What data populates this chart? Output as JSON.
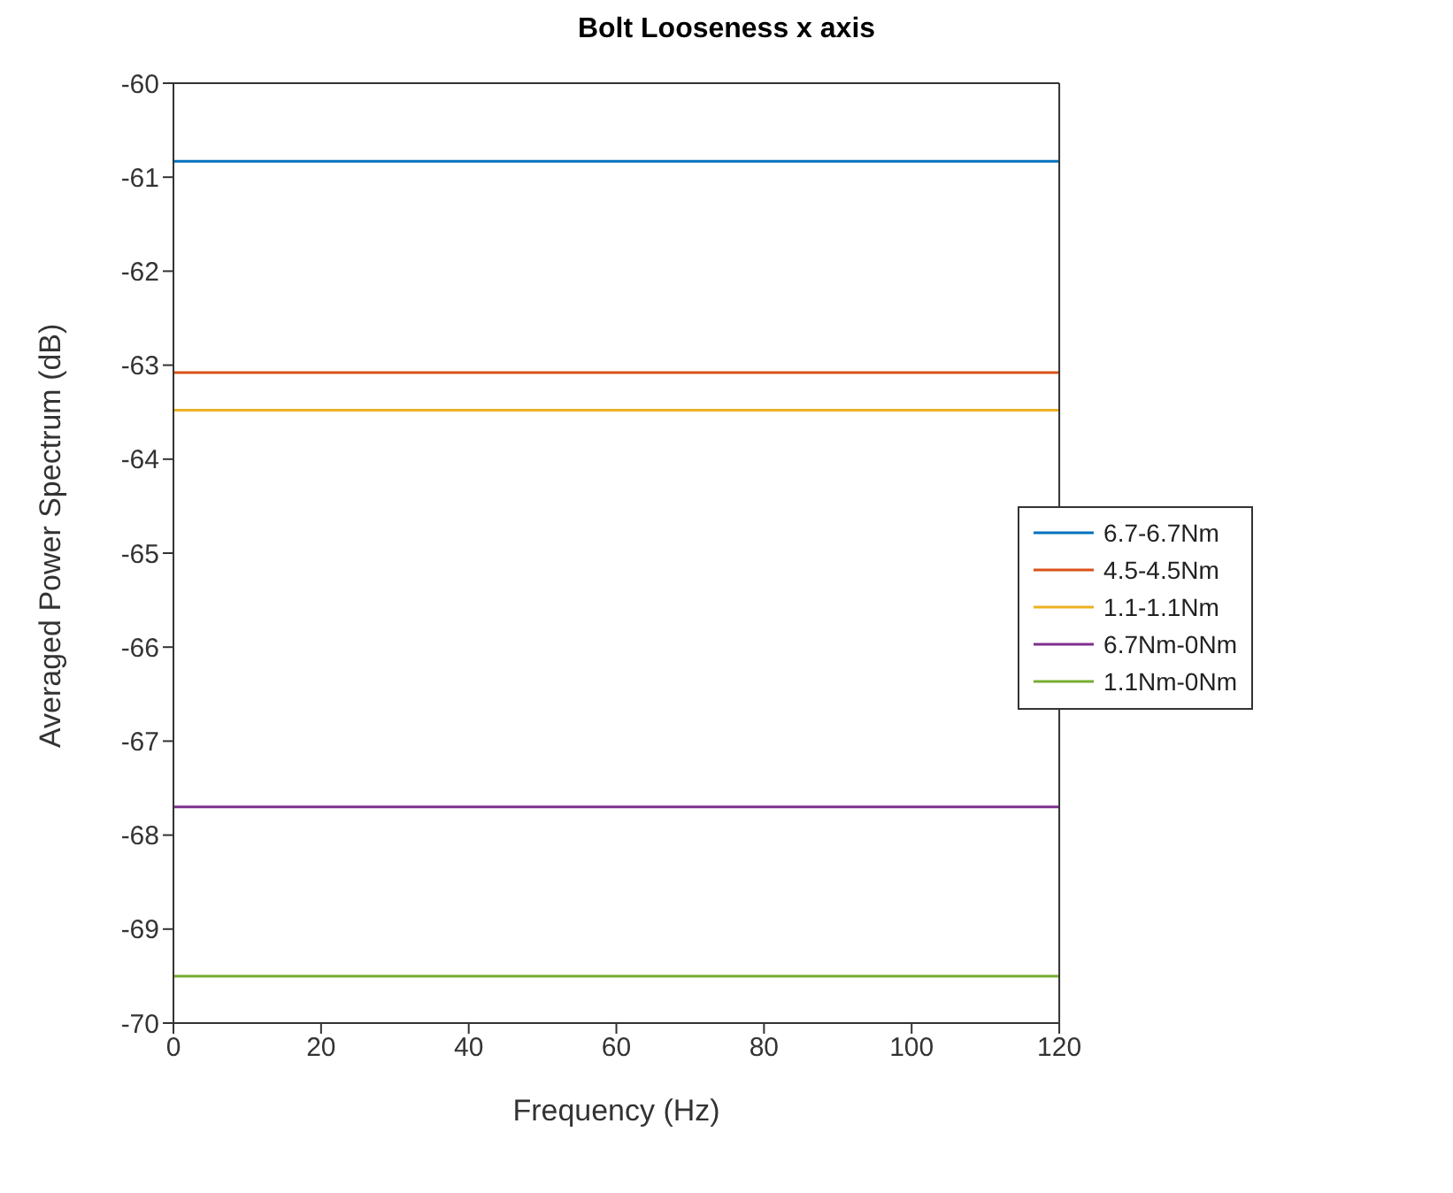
{
  "chart_data": {
    "type": "line",
    "title": "Bolt Looseness x axis",
    "xlabel": "Frequency (Hz)",
    "ylabel": "Averaged Power Spectrum (dB)",
    "x": [
      0,
      120
    ],
    "series": [
      {
        "name": "6.7-6.7Nm",
        "color": "#0072bd",
        "values": [
          -60.83,
          -60.83
        ]
      },
      {
        "name": "4.5-4.5Nm",
        "color": "#d95319",
        "values": [
          -63.08,
          -63.08
        ]
      },
      {
        "name": "1.1-1.1Nm",
        "color": "#edb120",
        "values": [
          -63.48,
          -63.48
        ]
      },
      {
        "name": "6.7Nm-0Nm",
        "color": "#7e2f8e",
        "values": [
          -67.7,
          -67.7
        ]
      },
      {
        "name": "1.1Nm-0Nm",
        "color": "#77ac30",
        "values": [
          -69.5,
          -69.5
        ]
      }
    ],
    "xlim": [
      0,
      120
    ],
    "xticks": [
      0,
      20,
      40,
      60,
      80,
      100,
      120
    ],
    "ylim": [
      -70,
      -60
    ],
    "yticks": [
      -70,
      -69,
      -68,
      -67,
      -66,
      -65,
      -64,
      -63,
      -62,
      -61,
      -60
    ],
    "legend": "right",
    "grid": false,
    "marker": "none",
    "line_style": "solid"
  }
}
